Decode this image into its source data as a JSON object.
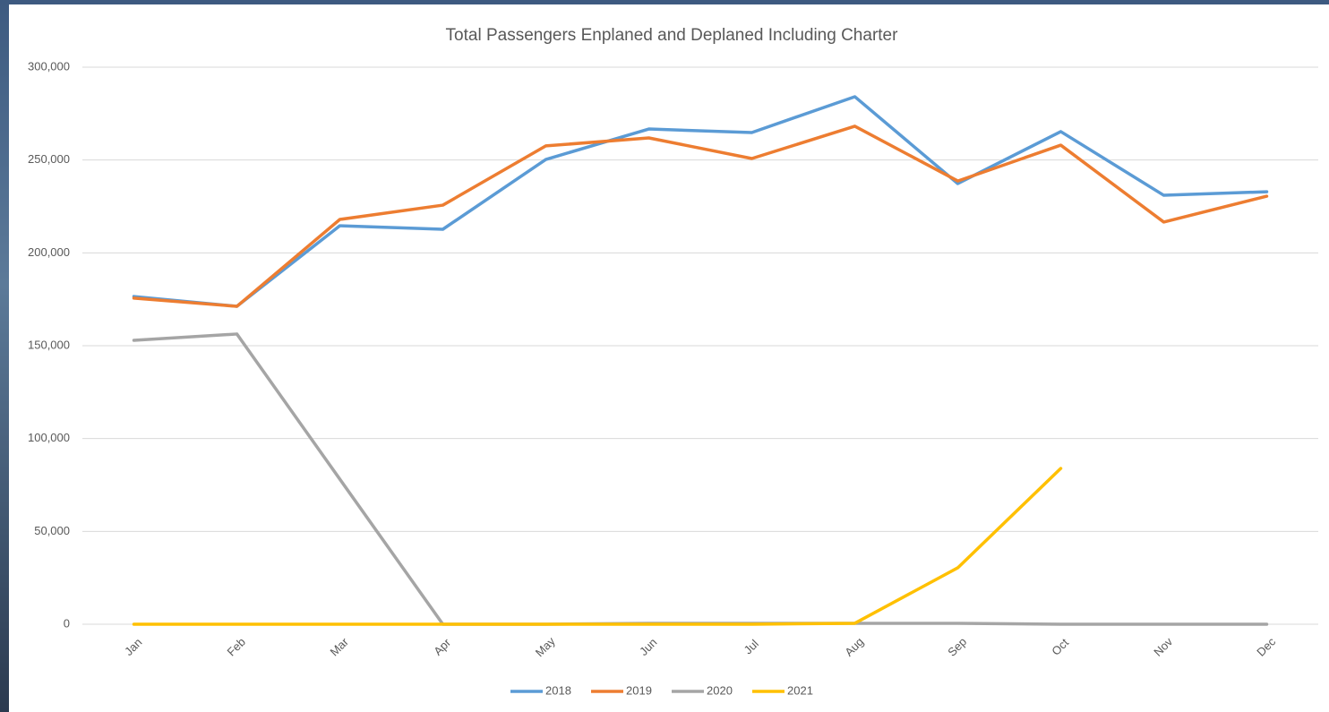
{
  "chart_data": {
    "type": "line",
    "title": "Total Passengers Enplaned and Deplaned Including Charter",
    "categories": [
      "Jan",
      "Feb",
      "Mar",
      "Apr",
      "May",
      "Jun",
      "Jul",
      "Aug",
      "Sep",
      "Oct",
      "Nov",
      "Dec"
    ],
    "series": [
      {
        "name": "2018",
        "color": "#5b9bd5",
        "values": [
          176500,
          171200,
          214600,
          212700,
          250300,
          266700,
          264800,
          284100,
          237300,
          265300,
          231000,
          232900
        ]
      },
      {
        "name": "2019",
        "color": "#ed7d31",
        "values": [
          175600,
          171200,
          218000,
          225700,
          257600,
          261900,
          250800,
          268200,
          238700,
          258000,
          216600,
          230500
        ]
      },
      {
        "name": "2020",
        "color": "#a5a5a5",
        "values": [
          152900,
          156300,
          78100,
          0,
          0,
          500,
          500,
          500,
          500,
          0,
          0,
          0
        ]
      },
      {
        "name": "2021",
        "color": "#ffc000",
        "values": [
          0,
          0,
          0,
          0,
          0,
          0,
          0,
          500,
          30400,
          83900,
          null,
          null
        ]
      }
    ],
    "ylim": [
      0,
      300000
    ],
    "yticks": [
      0,
      {
        "value": 50000,
        "label": "50,000"
      },
      {
        "value": 100000,
        "label": "100,000"
      },
      {
        "value": 150000,
        "label": "150,000"
      },
      {
        "value": 200000,
        "label": "200,000"
      },
      {
        "value": 250000,
        "label": "250,000"
      },
      {
        "value": 300000,
        "label": "300,000"
      }
    ],
    "grid": true,
    "legend": "bottom"
  }
}
